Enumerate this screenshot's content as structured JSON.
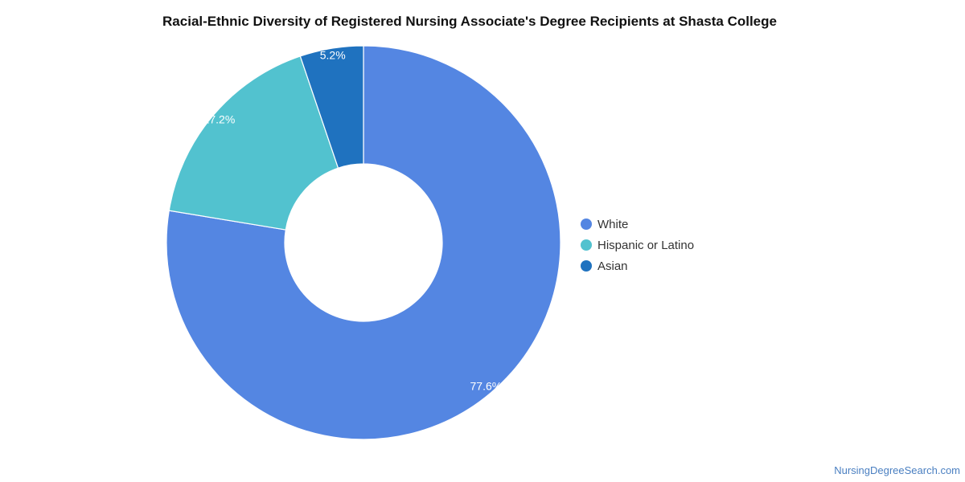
{
  "chart_data": {
    "type": "pie",
    "variant": "donut",
    "title": "Racial-Ethnic Diversity of Registered Nursing Associate's Degree Recipients at Shasta College",
    "categories": [
      "White",
      "Hispanic or Latino",
      "Asian"
    ],
    "values": [
      77.6,
      17.2,
      5.2
    ],
    "value_labels": [
      "77.6%",
      "17.2%",
      "5.2%"
    ],
    "colors": [
      "#5486e2",
      "#52c2cf",
      "#1f72bf"
    ],
    "legend_position": "right",
    "start_angle_deg": 0,
    "direction": "clockwise"
  },
  "footer": {
    "watermark": "NursingDegreeSearch.com"
  }
}
